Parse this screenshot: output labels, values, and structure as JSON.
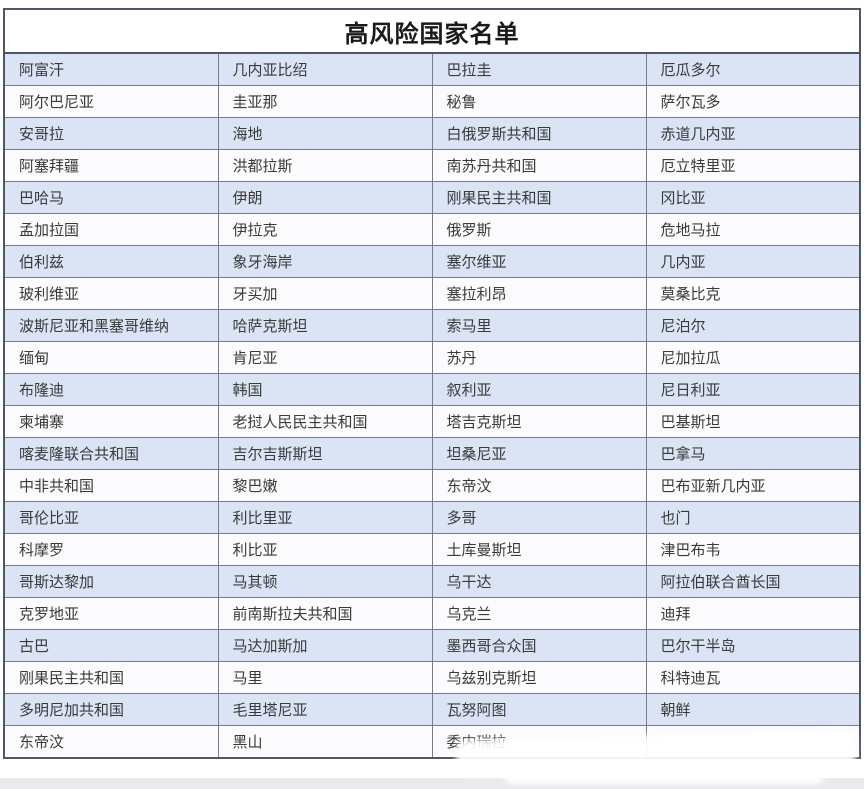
{
  "table": {
    "title": "高风险国家名单",
    "columns": 4,
    "rows": [
      [
        "阿富汗",
        "几内亚比绍",
        "巴拉圭",
        "厄瓜多尔"
      ],
      [
        "阿尔巴尼亚",
        "圭亚那",
        "秘鲁",
        "萨尔瓦多"
      ],
      [
        "安哥拉",
        "海地",
        "白俄罗斯共和国",
        "赤道几内亚"
      ],
      [
        "阿塞拜疆",
        "洪都拉斯",
        "南苏丹共和国",
        "厄立特里亚"
      ],
      [
        "巴哈马",
        "伊朗",
        "刚果民主共和国",
        "冈比亚"
      ],
      [
        "孟加拉国",
        "伊拉克",
        "俄罗斯",
        "危地马拉"
      ],
      [
        "伯利兹",
        "象牙海岸",
        "塞尔维亚",
        "几内亚"
      ],
      [
        "玻利维亚",
        "牙买加",
        "塞拉利昂",
        "莫桑比克"
      ],
      [
        "波斯尼亚和黑塞哥维纳",
        "哈萨克斯坦",
        "索马里",
        "尼泊尔"
      ],
      [
        "缅甸",
        "肯尼亚",
        "苏丹",
        "尼加拉瓜"
      ],
      [
        "布隆迪",
        "韩国",
        "叙利亚",
        "尼日利亚"
      ],
      [
        "柬埔寨",
        "老挝人民民主共和国",
        "塔吉克斯坦",
        "巴基斯坦"
      ],
      [
        "喀麦隆联合共和国",
        "吉尔吉斯斯坦",
        "坦桑尼亚",
        "巴拿马"
      ],
      [
        "中非共和国",
        "黎巴嫩",
        "东帝汶",
        "巴布亚新几内亚"
      ],
      [
        "哥伦比亚",
        "利比里亚",
        "多哥",
        "也门"
      ],
      [
        "科摩罗",
        "利比亚",
        "土库曼斯坦",
        "津巴布韦"
      ],
      [
        "哥斯达黎加",
        "马其顿",
        "乌干达",
        "阿拉伯联合酋长国"
      ],
      [
        "克罗地亚",
        "前南斯拉夫共和国",
        "乌克兰",
        "迪拜"
      ],
      [
        "古巴",
        "马达加斯加",
        "墨西哥合众国",
        "巴尔干半岛"
      ],
      [
        "刚果民主共和国",
        "马里",
        "乌兹别克斯坦",
        "科特迪瓦"
      ],
      [
        "多明尼加共和国",
        "毛里塔尼亚",
        "瓦努阿图",
        "朝鲜"
      ],
      [
        "东帝汶",
        "黑山",
        "委内瑞拉",
        ""
      ]
    ]
  },
  "colors": {
    "row_odd": "#dbe4f4",
    "row_even": "#fbfbfd",
    "border_inner": "#767b8e",
    "border_outer": "#50556a",
    "cell_text": "#3a3a3a",
    "title_text": "#1a1a1a",
    "page_bottom": "#e9e9ee"
  }
}
